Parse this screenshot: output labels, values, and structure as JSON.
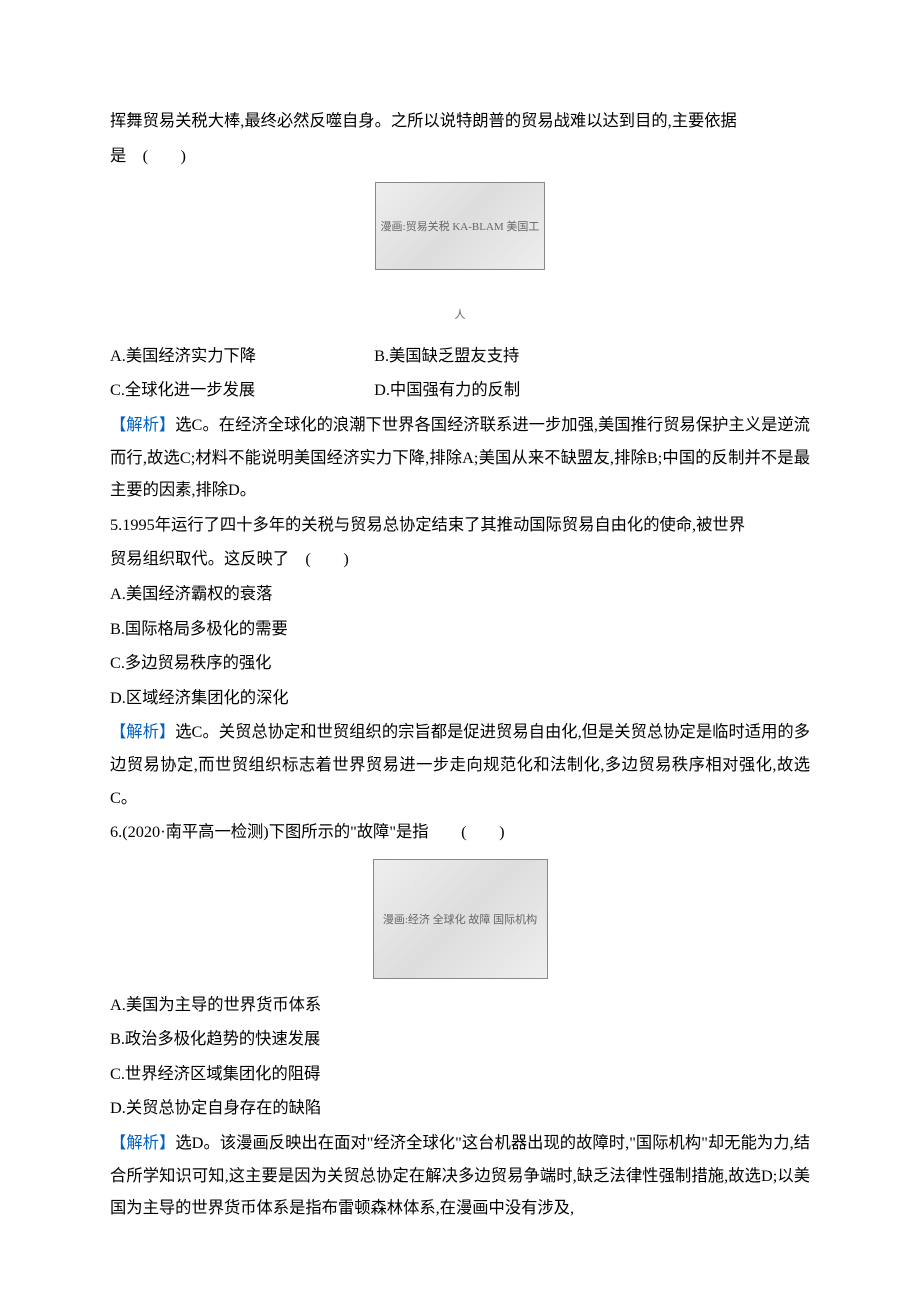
{
  "colors": {
    "text": "#000000",
    "highlight": "#0061c2",
    "background": "#ffffff"
  },
  "typography": {
    "font_family": "SimSun",
    "font_size_pt": 12,
    "line_height": 2.0
  },
  "q4": {
    "stem_line1": "挥舞贸易关税大棒,最终必然反噬自身。之所以说特朗普的贸易战难以达到目的,主要依据",
    "stem_line2": "是　(　　)",
    "img_alt": "漫画:贸易关税 KA-BLAM 美国工人",
    "optA": "A.美国经济实力下降",
    "optB": "B.美国缺乏盟友支持",
    "optC": "C.全球化进一步发展",
    "optD": "D.中国强有力的反制",
    "analysis_label": "【解析】",
    "analysis_text": "选C。在经济全球化的浪潮下世界各国经济联系进一步加强,美国推行贸易保护主义是逆流而行,故选C;材料不能说明美国经济实力下降,排除A;美国从来不缺盟友,排除B;中国的反制并不是最主要的因素,排除D。"
  },
  "q5": {
    "stem_line1": "5.1995年运行了四十多年的关税与贸易总协定结束了其推动国际贸易自由化的使命,被世界",
    "stem_line2": "贸易组织取代。这反映了　(　　)",
    "optA": "A.美国经济霸权的衰落",
    "optB": "B.国际格局多极化的需要",
    "optC": "C.多边贸易秩序的强化",
    "optD": "D.区域经济集团化的深化",
    "analysis_label": "【解析】",
    "analysis_text": "选C。关贸总协定和世贸组织的宗旨都是促进贸易自由化,但是关贸总协定是临时适用的多边贸易协定,而世贸组织标志着世界贸易进一步走向规范化和法制化,多边贸易秩序相对强化,故选C。"
  },
  "q6": {
    "stem": "6.(2020·南平高一检测)下图所示的\"故障\"是指　　(　　)",
    "img_alt": "漫画:经济 全球化 故障 国际机构",
    "optA": "A.美国为主导的世界货币体系",
    "optB": "B.政治多极化趋势的快速发展",
    "optC": "C.世界经济区域集团化的阻碍",
    "optD": "D.关贸总协定自身存在的缺陷",
    "analysis_label": "【解析】",
    "analysis_text": "选D。该漫画反映出在面对\"经济全球化\"这台机器出现的故障时,\"国际机构\"却无能为力,结合所学知识可知,这主要是因为关贸总协定在解决多边贸易争端时,缺乏法律性强制措施,故选D;以美国为主导的世界货币体系是指布雷顿森林体系,在漫画中没有涉及,"
  }
}
